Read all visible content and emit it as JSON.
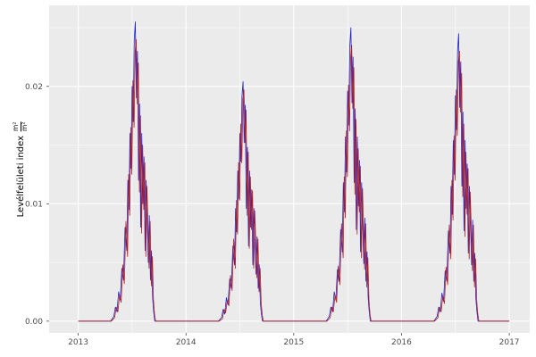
{
  "figure": {
    "background": "#ffffff",
    "panel_background": "#ebebeb",
    "grid_major_color": "#ffffff",
    "grid_minor_color": "#ffffff",
    "axis_tick_color": "#333333",
    "tick_label_color": "#4d4d4d",
    "axis_title_color": "#000000"
  },
  "chart_data": {
    "type": "line",
    "title": "",
    "xlabel": "",
    "ylabel": "Levélfelületi index m²/m²",
    "ylabel_text": "Levélfelületi index",
    "ylabel_frac_num": "m²",
    "ylabel_frac_den": "m²",
    "xlim": [
      2012.73,
      2017.19
    ],
    "ylim": [
      -0.001,
      0.0269
    ],
    "x_ticks": [
      2013,
      2014,
      2015,
      2016,
      2017
    ],
    "x_tick_labels": [
      "2013",
      "2014",
      "2015",
      "2016",
      "2017"
    ],
    "x_minor_ticks": [
      2013.5,
      2014.5,
      2015.5,
      2016.5
    ],
    "y_ticks": [
      0,
      0.01,
      0.02
    ],
    "y_tick_labels": [
      "0.00",
      "0.01",
      "0.02"
    ],
    "y_minor_ticks": [
      0.005,
      0.015,
      0.025
    ],
    "grid": true,
    "legend": "none",
    "x_start": 2013.0,
    "x_end": 2017.0,
    "season_x_offsets": [
      0.3,
      0.33,
      0.345,
      0.36,
      0.375,
      0.39,
      0.405,
      0.42,
      0.435,
      0.45,
      0.46,
      0.47,
      0.48,
      0.49,
      0.5,
      0.51,
      0.52,
      0.53,
      0.54,
      0.55,
      0.56,
      0.57,
      0.58,
      0.59,
      0.6,
      0.61,
      0.62,
      0.63,
      0.64,
      0.65,
      0.66,
      0.67,
      0.68,
      0.69,
      0.7,
      0.71
    ],
    "series": [
      {
        "name": "series-blue",
        "color": "#2222cc",
        "x_shift": 0,
        "seasons": [
          {
            "year": 2013,
            "values": [
              0,
              0.0004,
              0.0012,
              0.0008,
              0.0025,
              0.0018,
              0.0045,
              0.0035,
              0.008,
              0.006,
              0.012,
              0.0095,
              0.016,
              0.013,
              0.02,
              0.017,
              0.024,
              0.0255,
              0.019,
              0.023,
              0.012,
              0.0185,
              0.008,
              0.016,
              0.01,
              0.014,
              0.006,
              0.012,
              0.0085,
              0.005,
              0.009,
              0.0035,
              0.006,
              0.002,
              0.0008,
              0
            ]
          },
          {
            "year": 2014,
            "values": [
              0,
              0.0003,
              0.001,
              0.0006,
              0.002,
              0.0014,
              0.0036,
              0.0028,
              0.0064,
              0.0048,
              0.0096,
              0.0076,
              0.0128,
              0.0104,
              0.016,
              0.0136,
              0.0192,
              0.0204,
              0.0152,
              0.0184,
              0.0096,
              0.0148,
              0.0064,
              0.0128,
              0.008,
              0.0112,
              0.0048,
              0.0096,
              0.0068,
              0.004,
              0.0072,
              0.0028,
              0.0048,
              0.0016,
              0.0006,
              0
            ]
          },
          {
            "year": 2015,
            "values": [
              0,
              0.0004,
              0.0012,
              0.0008,
              0.0025,
              0.0018,
              0.0044,
              0.0034,
              0.0078,
              0.0059,
              0.0118,
              0.0093,
              0.0157,
              0.0127,
              0.0196,
              0.0167,
              0.0235,
              0.025,
              0.0186,
              0.0225,
              0.0118,
              0.0181,
              0.0078,
              0.0157,
              0.0098,
              0.0137,
              0.0059,
              0.0118,
              0.0083,
              0.0049,
              0.0088,
              0.0034,
              0.0059,
              0.002,
              0.0008,
              0
            ]
          },
          {
            "year": 2016,
            "values": [
              0,
              0.0004,
              0.0012,
              0.0008,
              0.0024,
              0.0017,
              0.0043,
              0.0034,
              0.0077,
              0.0058,
              0.0115,
              0.0091,
              0.0154,
              0.0125,
              0.0192,
              0.0163,
              0.023,
              0.0245,
              0.0182,
              0.0221,
              0.0115,
              0.0178,
              0.0077,
              0.0154,
              0.0096,
              0.0134,
              0.0058,
              0.0115,
              0.0082,
              0.0048,
              0.0086,
              0.0034,
              0.0058,
              0.0019,
              0.0008,
              0
            ]
          }
        ]
      },
      {
        "name": "series-darkred",
        "color": "#b22222",
        "x_shift": 0.008,
        "seasons": [
          {
            "year": 2013,
            "values": [
              0,
              0.0003,
              0.0012,
              0.0008,
              0.0022,
              0.0016,
              0.0048,
              0.0032,
              0.0085,
              0.0055,
              0.0125,
              0.009,
              0.0165,
              0.0125,
              0.0205,
              0.0165,
              0.023,
              0.024,
              0.0185,
              0.022,
              0.011,
              0.0175,
              0.0075,
              0.015,
              0.0095,
              0.0135,
              0.0055,
              0.0115,
              0.008,
              0.0045,
              0.0085,
              0.003,
              0.0055,
              0.0018,
              0.0006,
              0
            ]
          },
          {
            "year": 2014,
            "values": [
              0,
              0.0002,
              0.001,
              0.0007,
              0.0018,
              0.0013,
              0.0039,
              0.0026,
              0.007,
              0.0045,
              0.0103,
              0.0074,
              0.0135,
              0.0103,
              0.0168,
              0.0135,
              0.0189,
              0.0197,
              0.0152,
              0.018,
              0.009,
              0.0144,
              0.0062,
              0.0123,
              0.0078,
              0.0111,
              0.0045,
              0.0094,
              0.0066,
              0.0037,
              0.007,
              0.0025,
              0.0045,
              0.0015,
              0.0005,
              0
            ]
          },
          {
            "year": 2015,
            "values": [
              0,
              0.0003,
              0.0012,
              0.0008,
              0.0022,
              0.0016,
              0.0047,
              0.0031,
              0.0083,
              0.0054,
              0.0123,
              0.0088,
              0.0162,
              0.0123,
              0.0201,
              0.0162,
              0.0225,
              0.0235,
              0.0181,
              0.0216,
              0.0108,
              0.0172,
              0.0074,
              0.0147,
              0.0093,
              0.0132,
              0.0054,
              0.0113,
              0.0078,
              0.0044,
              0.0083,
              0.0029,
              0.0054,
              0.0018,
              0.0006,
              0
            ]
          },
          {
            "year": 2016,
            "values": [
              0,
              0.0003,
              0.0012,
              0.0008,
              0.0021,
              0.0015,
              0.0046,
              0.0031,
              0.0082,
              0.0053,
              0.012,
              0.0086,
              0.0158,
              0.012,
              0.0197,
              0.0158,
              0.0221,
              0.023,
              0.0178,
              0.0211,
              0.0106,
              0.0168,
              0.0072,
              0.0144,
              0.0091,
              0.013,
              0.0053,
              0.011,
              0.0077,
              0.0043,
              0.0082,
              0.0029,
              0.0053,
              0.0017,
              0.0006,
              0
            ]
          }
        ]
      }
    ]
  }
}
